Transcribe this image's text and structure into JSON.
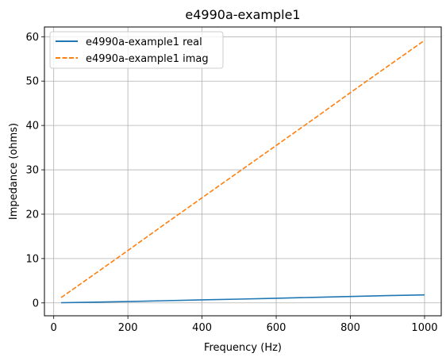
{
  "chart_data": {
    "type": "line",
    "title": "e4990a-example1",
    "xlabel": "Frequency (Hz)",
    "ylabel": "Impedance (ohms)",
    "xlim": [
      -25,
      1045
    ],
    "ylim": [
      -2.9,
      62.2
    ],
    "xticks": [
      0,
      200,
      400,
      600,
      800,
      1000
    ],
    "yticks": [
      0,
      10,
      20,
      30,
      40,
      50,
      60
    ],
    "grid": true,
    "legend_position": "top-left",
    "series": [
      {
        "name": "e4990a-example1 real",
        "color": "#1f77b4",
        "style": "solid",
        "x": [
          20,
          100,
          200,
          300,
          400,
          500,
          600,
          700,
          800,
          900,
          1000
        ],
        "y": [
          0.05,
          0.15,
          0.3,
          0.5,
          0.7,
          0.85,
          1.05,
          1.25,
          1.45,
          1.65,
          1.8
        ]
      },
      {
        "name": "e4990a-example1 imag",
        "color": "#ff7f0e",
        "style": "dashed",
        "x": [
          20,
          100,
          200,
          300,
          400,
          500,
          600,
          700,
          800,
          900,
          1000
        ],
        "y": [
          1.2,
          5.9,
          11.8,
          17.8,
          23.7,
          29.6,
          35.5,
          41.4,
          47.4,
          53.3,
          59.2
        ]
      }
    ]
  }
}
